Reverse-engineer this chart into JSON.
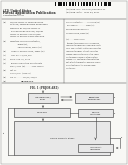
{
  "bg_color": "#f0f0eb",
  "barcode_color": "#111111",
  "header_color": "#222222",
  "text_color": "#333333",
  "line_color": "#444444",
  "box_edge": "#555555",
  "box_face": "#e8e8e8",
  "page_bg": "#f8f8f5"
}
